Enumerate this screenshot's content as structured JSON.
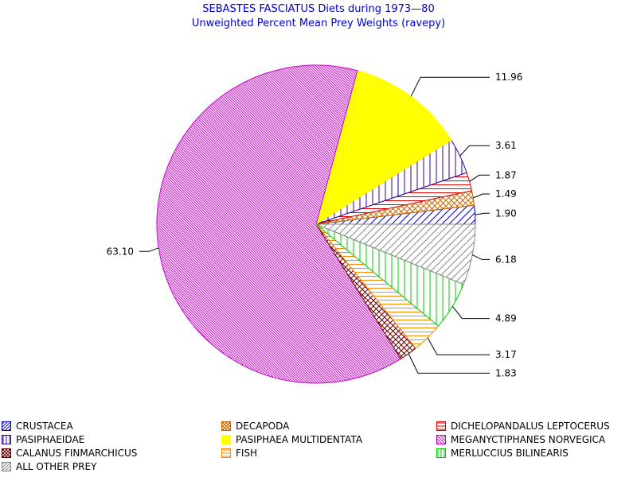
{
  "chart_data": {
    "type": "pie",
    "title": "SEBASTES FASCIATUS Diets during 1973—80",
    "subtitle": "Unweighted Percent Mean Prey Weights (ravepy)",
    "slices": [
      {
        "name": "CRUSTACEA",
        "value": 1.9,
        "label": "1.90",
        "color": "#0000cc",
        "pattern": "diag-fwd"
      },
      {
        "name": "DECAPODA",
        "value": 1.49,
        "label": "1.49",
        "color": "#cc6600",
        "pattern": "cross"
      },
      {
        "name": "DICHELOPANDALUS LEPTOCERUS",
        "value": 1.87,
        "label": "1.87",
        "color": "#dd0000",
        "pattern": "horiz"
      },
      {
        "name": "PASIPHAEIDAE",
        "value": 3.61,
        "label": "3.61",
        "color": "#330099",
        "pattern": "vert"
      },
      {
        "name": "PASIPHAEA MULTIDENTATA",
        "value": 11.96,
        "label": "11.96",
        "color": "#ffff00",
        "pattern": "solid"
      },
      {
        "name": "MEGANYCTIPHANES NORVEGICA",
        "value": 63.1,
        "label": "63.10",
        "color": "#cc00cc",
        "pattern": "diag-back"
      },
      {
        "name": "CALANUS FINMARCHICUS",
        "value": 1.83,
        "label": "1.83",
        "color": "#660000",
        "pattern": "cross"
      },
      {
        "name": "FISH",
        "value": 3.17,
        "label": "3.17",
        "color": "#ff8800",
        "pattern": "horiz"
      },
      {
        "name": "MERLUCCIUS BILINEARIS",
        "value": 4.89,
        "label": "4.89",
        "color": "#00cc00",
        "pattern": "vert"
      },
      {
        "name": "ALL OTHER PREY",
        "value": 6.18,
        "label": "6.18",
        "color": "#888888",
        "pattern": "diag-fwd"
      }
    ],
    "legend_position": "bottom"
  }
}
